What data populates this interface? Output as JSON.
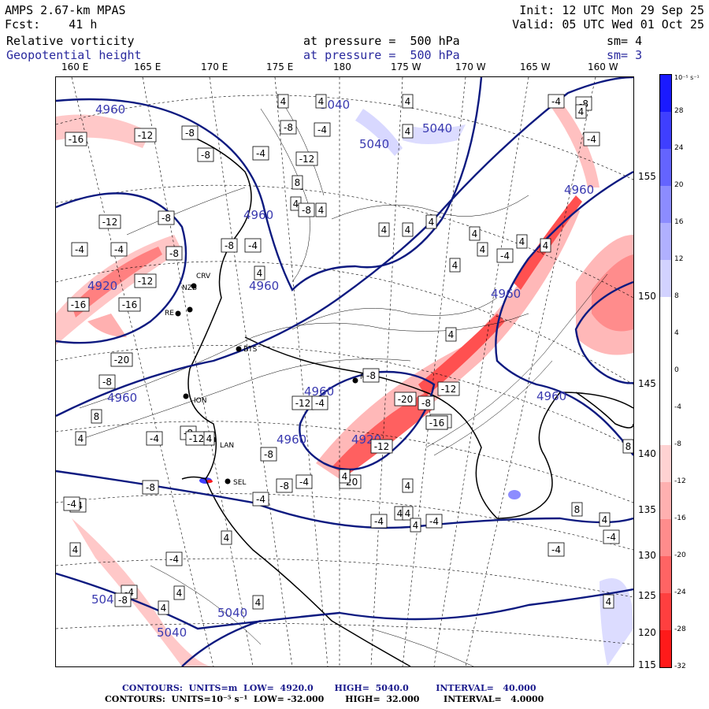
{
  "header": {
    "model": "AMPS 2.67-km MPAS",
    "fcst_label": "Fcst:",
    "fcst_value": "41 h",
    "init": "Init: 12 UTC Mon 29 Sep 25",
    "valid": "Valid: 05 UTC Wed 01 Oct 25",
    "field1_name": "Relative vorticity",
    "field1_level": "at pressure =  500 hPa",
    "field1_smooth": "sm= 4",
    "field2_name": "Geopotential height",
    "field2_level": "at pressure =  500 hPa",
    "field2_smooth": "sm= 3"
  },
  "longitude_labels": [
    "160 E",
    "165 E",
    "170 E",
    "175 E",
    "180",
    "175 W",
    "170 W",
    "165 W",
    "160 W"
  ],
  "latitude_labels": [
    "155 N",
    "150 N",
    "145 N",
    "140 N",
    "135 N",
    "130 N",
    "125 N",
    "120 N",
    "115 N"
  ],
  "colorbar": {
    "unit": "10⁻⁵ s⁻¹",
    "ticks": [
      "32",
      "28",
      "24",
      "20",
      "16",
      "12",
      "8",
      "4",
      "0",
      "-4",
      "-8",
      "-12",
      "-16",
      "-20",
      "-24",
      "-28",
      "-32"
    ],
    "colors": [
      "#1a1aff",
      "#3f3fff",
      "#6464ff",
      "#8c8cff",
      "#b0b0ff",
      "#d2d2ff",
      "#ffffff",
      "#ffffff",
      "#ffffff",
      "#ffffff",
      "#ffd2d2",
      "#ffb0b0",
      "#ff8c8c",
      "#ff6464",
      "#ff3f3f",
      "#ff1a1a"
    ]
  },
  "stations": [
    "BTS",
    "CRV",
    "NZB",
    "RE",
    "ION",
    "LAN",
    "SEL",
    "ME"
  ],
  "height_labels": [
    "4960",
    "4960",
    "4960",
    "4920",
    "4960",
    "4960",
    "4960",
    "4960",
    "5040",
    "5040",
    "5040",
    "5040",
    "5040",
    "5040",
    "4920",
    "4960",
    "4960"
  ],
  "vort_labels": [
    "-16",
    "-12",
    "-8",
    "-8",
    "-4",
    "4",
    "-8",
    "4",
    "-4",
    "-12",
    "8",
    "4",
    "-8",
    "4",
    "4",
    "4",
    "4",
    "4",
    "-4",
    "-8",
    "-12",
    "-8",
    "-4",
    "-8",
    "-12",
    "-16",
    "-20",
    "-16",
    "-4",
    "-8",
    "8",
    "4",
    "-4",
    "-8",
    "4",
    "-12",
    "-8",
    "-20",
    "-12",
    "4",
    "4",
    "4",
    "-4",
    "-4",
    "-8",
    "-4",
    "-12",
    "4",
    "4",
    "4",
    "-4",
    "-8",
    "-12",
    "-20",
    "-20",
    "-16",
    "-12",
    "4",
    "-8",
    "-4",
    "-8",
    "-4",
    "4",
    "-4",
    "-8",
    "4",
    "4",
    "4",
    "-4",
    "-4",
    "4",
    "-4",
    "8",
    "-4",
    "4",
    "4",
    "-8",
    "-4",
    "8",
    "4",
    "-4",
    "4",
    "4",
    "4",
    "4",
    "4",
    "4",
    "-4"
  ],
  "footer": {
    "line1": "CONTOURS:  UNITS=m  LOW=  4920.0       HIGH=  5040.0         INTERVAL=   40.000",
    "line2": "CONTOURS:  UNITS=10⁻⁵ s⁻¹  LOW= -32.000       HIGH=  32.000        INTERVAL=   4.0000"
  }
}
